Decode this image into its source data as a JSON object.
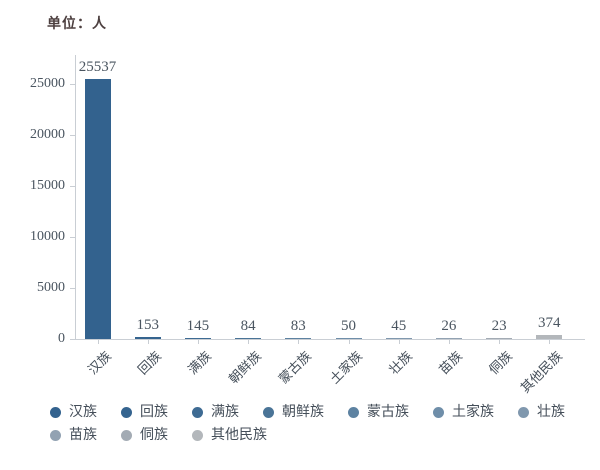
{
  "unit_label": "单位：人",
  "chart_data": {
    "type": "bar",
    "title": "",
    "unit": "单位：人",
    "categories": [
      "汉族",
      "回族",
      "满族",
      "朝鲜族",
      "蒙古族",
      "土家族",
      "壮族",
      "苗族",
      "侗族",
      "其他民族"
    ],
    "values": [
      25537,
      153,
      145,
      84,
      83,
      50,
      45,
      26,
      23,
      374
    ],
    "colors": [
      "#33628e",
      "#35648f",
      "#3e6b93",
      "#4a7497",
      "#5d82a1",
      "#6f8ea9",
      "#8098ae",
      "#92a2b2",
      "#a3abb4",
      "#b3b7bb"
    ],
    "xlabel": "",
    "ylabel": "",
    "ylim": [
      0,
      27500
    ],
    "yticks": [
      0,
      5000,
      10000,
      15000,
      20000,
      25000
    ],
    "grid": false,
    "legend_position": "bottom",
    "legend": [
      "汉族",
      "回族",
      "满族",
      "朝鲜族",
      "蒙古族",
      "土家族",
      "壮族",
      "苗族",
      "侗族",
      "其他民族"
    ]
  },
  "style_colors": {
    "axis_line": "#c9ced4",
    "tick_label": "#4a5560",
    "category_label": "#444e59",
    "unit_label": "#4c3f3f",
    "background": "#ffffff"
  }
}
